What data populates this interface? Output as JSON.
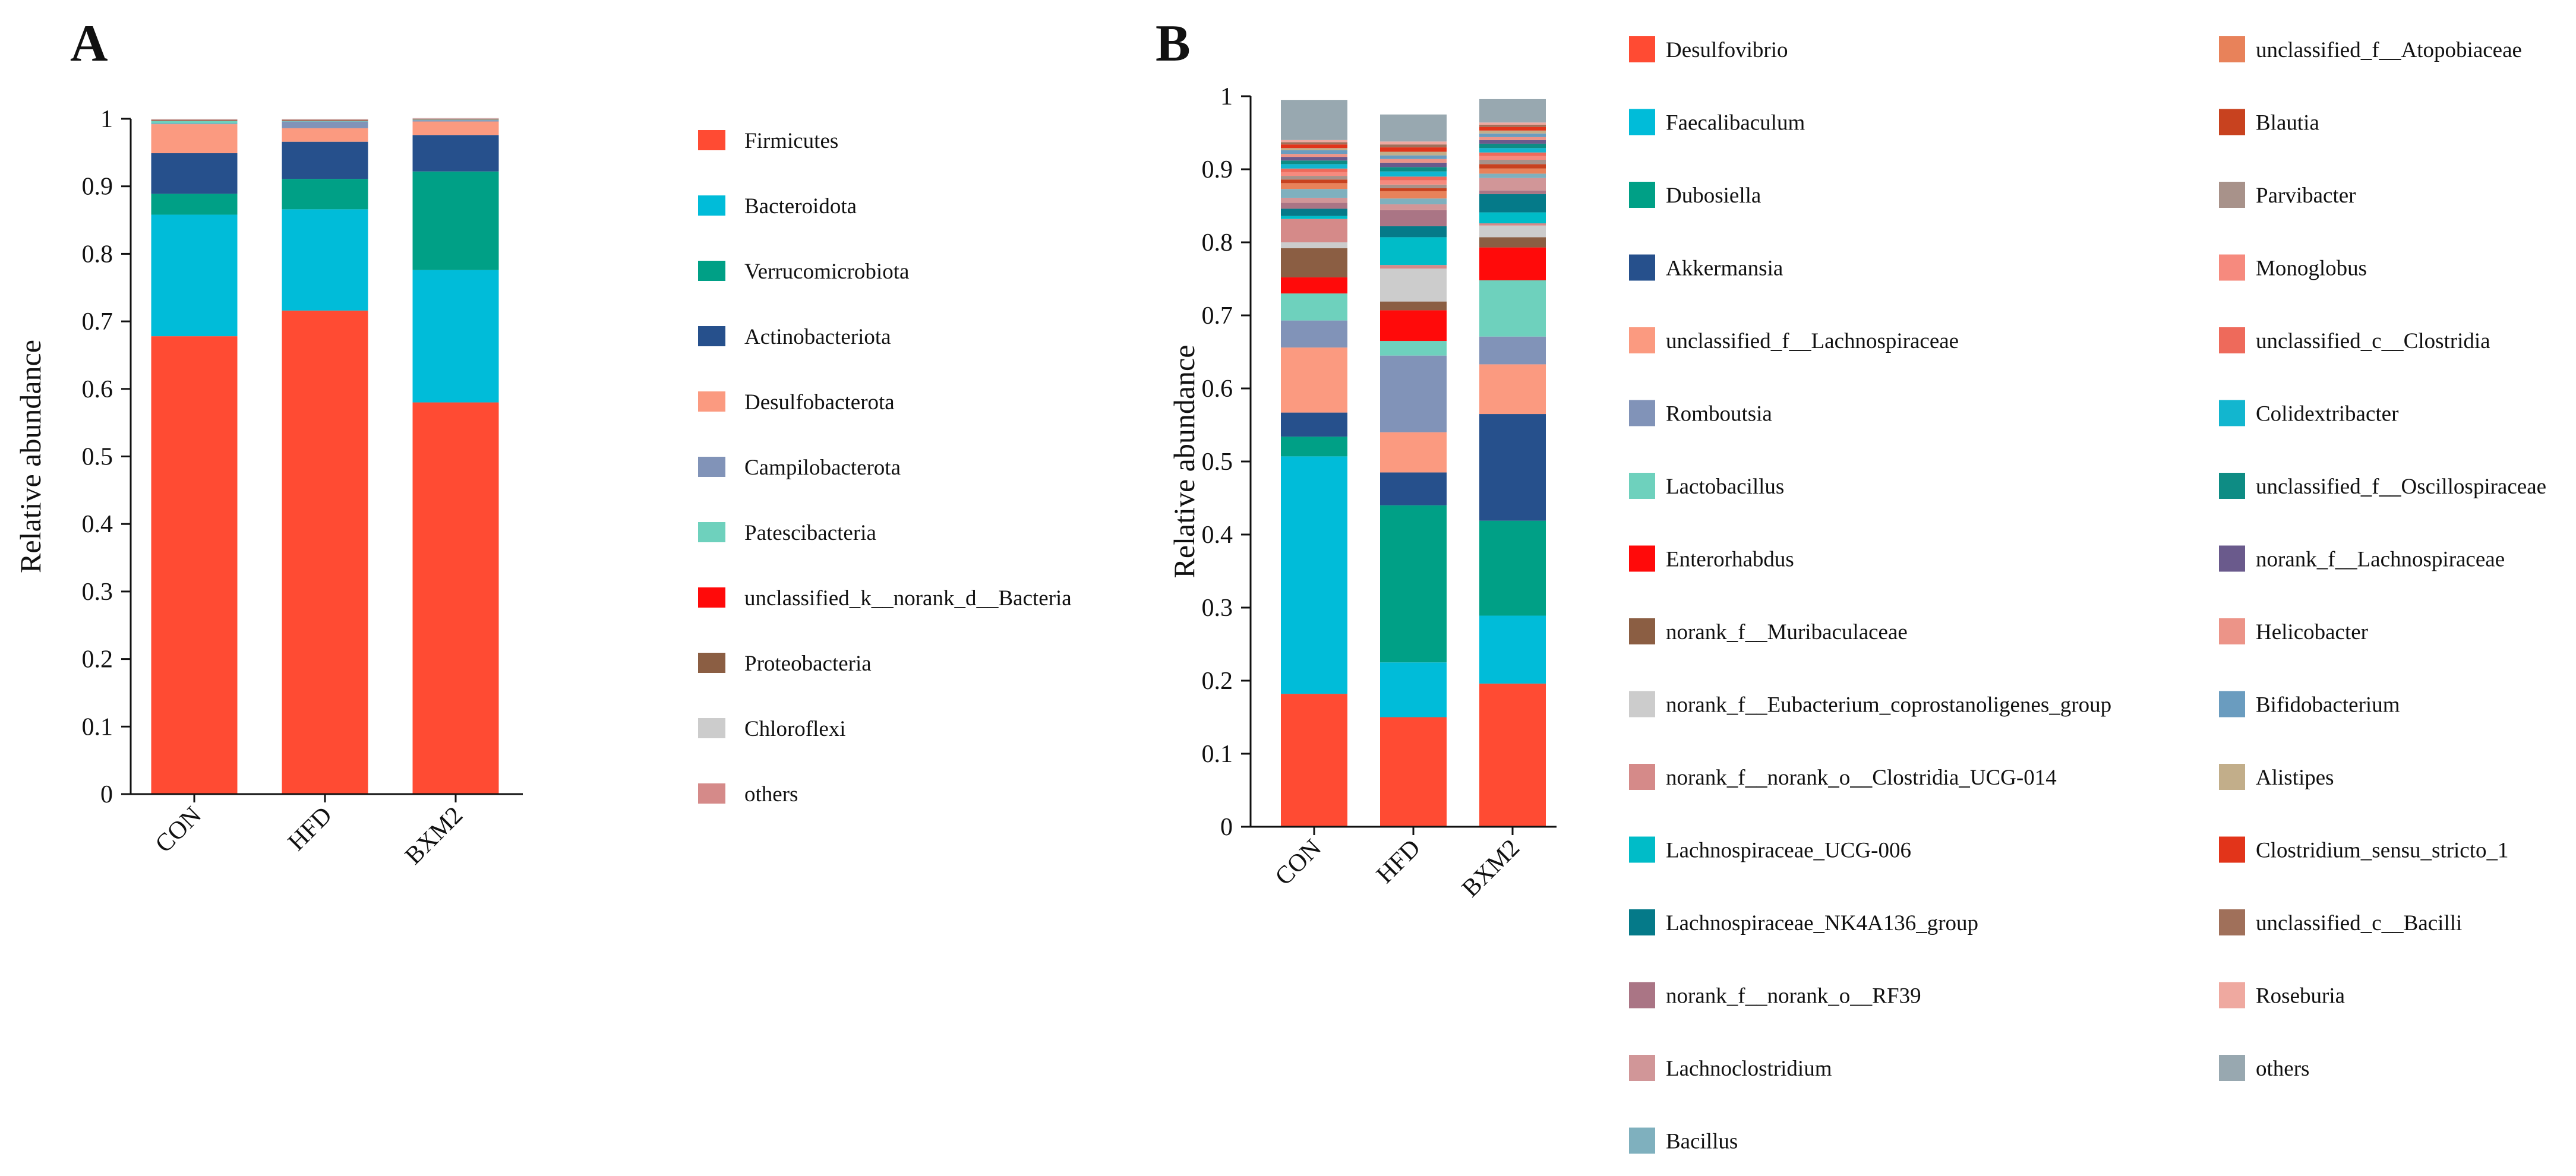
{
  "chart_data": [
    {
      "panel": "A",
      "type": "bar",
      "stacked": true,
      "normalized": true,
      "title": "",
      "xlabel": "",
      "ylabel": "Relative abundance",
      "ylim": [
        0,
        1
      ],
      "yticks": [
        "0",
        "0.1",
        "0.2",
        "0.3",
        "0.4",
        "0.5",
        "0.6",
        "0.7",
        "0.8",
        "0.9",
        "1"
      ],
      "categories": [
        "CON",
        "HFD",
        "BXM2"
      ],
      "legend_position": "right",
      "series": [
        {
          "name": "Firmicutes",
          "color": "#FF4B33",
          "values": [
            0.678,
            0.716,
            0.58
          ]
        },
        {
          "name": "Bacteroidota",
          "color": "#00BCD9",
          "values": [
            0.18,
            0.15,
            0.196
          ]
        },
        {
          "name": "Verrucomicrobiota",
          "color": "#00A086",
          "values": [
            0.031,
            0.045,
            0.146
          ]
        },
        {
          "name": "Actinobacteriota",
          "color": "#26508C",
          "values": [
            0.06,
            0.055,
            0.054
          ]
        },
        {
          "name": "Desulfobacterota",
          "color": "#FB9A80",
          "values": [
            0.043,
            0.02,
            0.02
          ]
        },
        {
          "name": "Campilobacterota",
          "color": "#8193B8",
          "values": [
            0.001,
            0.01,
            0.002
          ]
        },
        {
          "name": "Patescibacteria",
          "color": "#6ED1BD",
          "values": [
            0.004,
            0.001,
            0.001
          ]
        },
        {
          "name": "unclassified_k__norank_d__Bacteria",
          "color": "#FF0A0A",
          "values": [
            0.0005,
            0.0005,
            0.0005
          ]
        },
        {
          "name": "Proteobacteria",
          "color": "#8B5E43",
          "values": [
            0.001,
            0.001,
            0.0005
          ]
        },
        {
          "name": "Chloroflexi",
          "color": "#CCCCCC",
          "values": [
            0.0005,
            0.0005,
            0.0005
          ]
        },
        {
          "name": "others",
          "color": "#D58A89",
          "values": [
            0.001,
            0.001,
            0.0005
          ]
        }
      ]
    },
    {
      "panel": "B",
      "type": "bar",
      "stacked": true,
      "normalized": true,
      "title": "",
      "xlabel": "",
      "ylabel": "Relative abundance",
      "ylim": [
        0,
        1
      ],
      "yticks": [
        "0",
        "0.1",
        "0.2",
        "0.3",
        "0.4",
        "0.5",
        "0.6",
        "0.7",
        "0.8",
        "0.9",
        "1"
      ],
      "categories": [
        "CON",
        "HFD",
        "BXM2"
      ],
      "legend_position": "right",
      "series": [
        {
          "name": "Desulfovibrio",
          "color": "#FF4B33",
          "values": [
            0.182,
            0.15,
            0.196
          ]
        },
        {
          "name": "Faecalibaculum",
          "color": "#00BCD9",
          "values": [
            0.325,
            0.075,
            0.093
          ]
        },
        {
          "name": "Dubosiella",
          "color": "#00A086",
          "values": [
            0.027,
            0.215,
            0.13
          ]
        },
        {
          "name": "Akkermansia",
          "color": "#26508C",
          "values": [
            0.033,
            0.045,
            0.146
          ]
        },
        {
          "name": "unclassified_f__Lachnospiraceae",
          "color": "#FB9A80",
          "values": [
            0.089,
            0.055,
            0.068
          ]
        },
        {
          "name": "Romboutsia",
          "color": "#8193B8",
          "values": [
            0.037,
            0.105,
            0.038
          ]
        },
        {
          "name": "Lactobacillus",
          "color": "#6ED1BD",
          "values": [
            0.037,
            0.02,
            0.077
          ]
        },
        {
          "name": "Enterorhabdus",
          "color": "#FF0A0A",
          "values": [
            0.022,
            0.042,
            0.045
          ]
        },
        {
          "name": "norank_f__Muribaculaceae",
          "color": "#8B5E43",
          "values": [
            0.04,
            0.012,
            0.014
          ]
        },
        {
          "name": "norank_f__Eubacterium_coprostanoligenes_group",
          "color": "#CCCCCC",
          "values": [
            0.008,
            0.045,
            0.016
          ]
        },
        {
          "name": "norank_f__norank_o__Clostridia_UCG-014",
          "color": "#D58A89",
          "values": [
            0.032,
            0.005,
            0.003
          ]
        },
        {
          "name": "Lachnospiraceae_UCG-006",
          "color": "#00BCC8",
          "values": [
            0.004,
            0.038,
            0.015
          ]
        },
        {
          "name": "Lachnospiraceae_NK4A136_group",
          "color": "#057A89",
          "values": [
            0.01,
            0.015,
            0.025
          ]
        },
        {
          "name": "norank_f__norank_o__RF39",
          "color": "#AA7585",
          "values": [
            0.008,
            0.022,
            0.005
          ]
        },
        {
          "name": "Lachnoclostridium",
          "color": "#D19698",
          "values": [
            0.007,
            0.008,
            0.017
          ]
        },
        {
          "name": "Bacillus",
          "color": "#7FB0BE",
          "values": [
            0.012,
            0.008,
            0.006
          ]
        },
        {
          "name": "unclassified_f__Atopobiaceae",
          "color": "#E8825A",
          "values": [
            0.008,
            0.01,
            0.007
          ]
        },
        {
          "name": "Blautia",
          "color": "#C8421F",
          "values": [
            0.005,
            0.004,
            0.006
          ]
        },
        {
          "name": "Parvibacter",
          "color": "#A8928A",
          "values": [
            0.005,
            0.005,
            0.006
          ]
        },
        {
          "name": "Monoglobus",
          "color": "#F68A7E",
          "values": [
            0.005,
            0.006,
            0.005
          ]
        },
        {
          "name": "unclassified_c__Clostridia",
          "color": "#EE6A5B",
          "values": [
            0.005,
            0.005,
            0.005
          ]
        },
        {
          "name": "Colidextribacter",
          "color": "#12B6CF",
          "values": [
            0.006,
            0.007,
            0.006
          ]
        },
        {
          "name": "unclassified_f__Oscillospiraceae",
          "color": "#0E8C84",
          "values": [
            0.005,
            0.006,
            0.006
          ]
        },
        {
          "name": "norank_f__Lachnospiraceae",
          "color": "#6A5A8C",
          "values": [
            0.005,
            0.006,
            0.005
          ]
        },
        {
          "name": "Helicobacter",
          "color": "#EC9488",
          "values": [
            0.004,
            0.005,
            0.004
          ]
        },
        {
          "name": "Bifidobacterium",
          "color": "#6A9CBF",
          "values": [
            0.005,
            0.005,
            0.005
          ]
        },
        {
          "name": "Alistipes",
          "color": "#C2AE8A",
          "values": [
            0.003,
            0.005,
            0.004
          ]
        },
        {
          "name": "Clostridium_sensu_stricto_1",
          "color": "#E2341A",
          "values": [
            0.005,
            0.006,
            0.005
          ]
        },
        {
          "name": "unclassified_c__Bacilli",
          "color": "#A0705A",
          "values": [
            0.003,
            0.004,
            0.003
          ]
        },
        {
          "name": "Roseburia",
          "color": "#EFA9A0",
          "values": [
            0.003,
            0.004,
            0.003
          ]
        },
        {
          "name": "others",
          "color": "#98A8B0",
          "values": [
            0.055,
            0.037,
            0.032
          ]
        }
      ]
    }
  ]
}
